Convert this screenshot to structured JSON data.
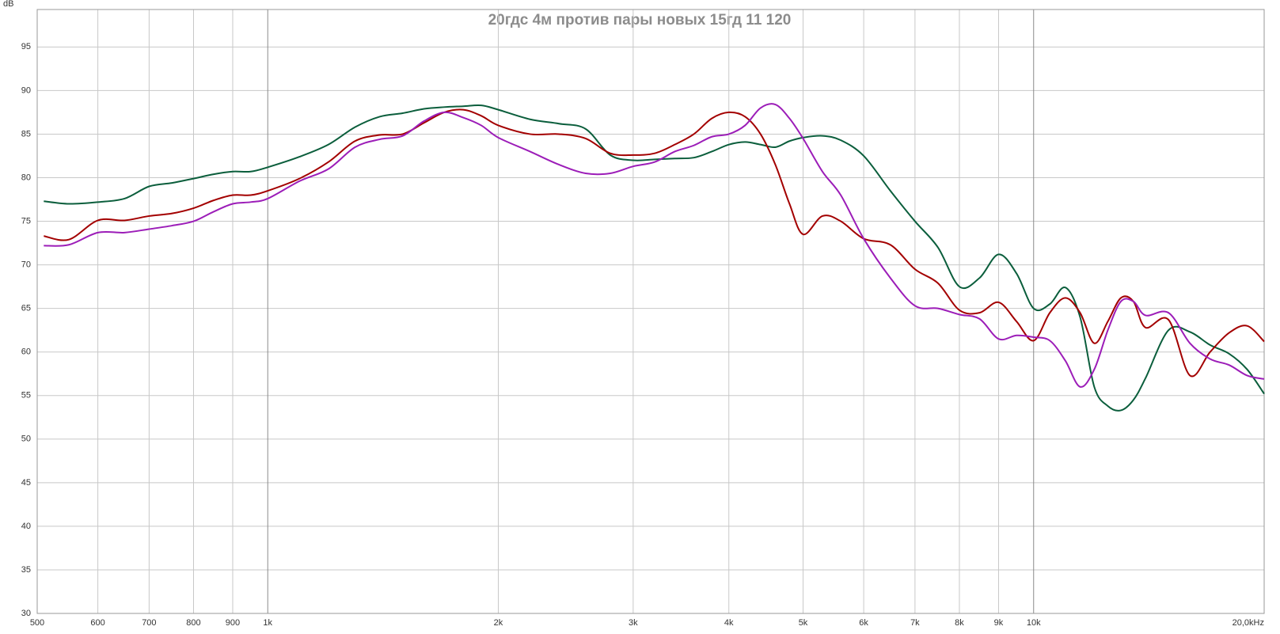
{
  "chart_data": {
    "type": "line",
    "title": "20гдс 4м против пары новых 15гд 11 120",
    "y_label": "dB",
    "x_scale": "log",
    "grid": true,
    "x": [
      510,
      550,
      600,
      650,
      700,
      750,
      800,
      850,
      900,
      950,
      1000,
      1100,
      1200,
      1300,
      1400,
      1500,
      1600,
      1700,
      1800,
      1900,
      2000,
      2200,
      2400,
      2600,
      2800,
      3000,
      3200,
      3400,
      3600,
      3800,
      4000,
      4200,
      4400,
      4600,
      4800,
      5000,
      5300,
      5600,
      6000,
      6500,
      7000,
      7500,
      8000,
      8500,
      9000,
      9500,
      10000,
      10500,
      11000,
      11500,
      12000,
      12500,
      13000,
      13500,
      14000,
      15000,
      16000,
      17000,
      18000,
      19000,
      20000
    ],
    "series": [
      {
        "color": "#0b5e3c",
        "values": [
          77.3,
          77.0,
          77.2,
          77.6,
          79.0,
          79.4,
          79.9,
          80.4,
          80.7,
          80.7,
          81.2,
          82.4,
          83.8,
          85.8,
          87.0,
          87.4,
          87.9,
          88.1,
          88.2,
          88.3,
          87.8,
          86.7,
          86.2,
          85.6,
          82.6,
          82.0,
          82.1,
          82.2,
          82.3,
          83.0,
          83.8,
          84.1,
          83.8,
          83.5,
          84.2,
          84.6,
          84.8,
          84.3,
          82.5,
          78.5,
          75.0,
          72.0,
          67.5,
          68.5,
          71.2,
          69.0,
          65.0,
          65.5,
          67.4,
          64.0,
          56.0,
          53.8,
          53.3,
          54.5,
          57.0,
          62.5,
          62.3,
          60.8,
          59.8,
          58.0,
          55.2
        ]
      },
      {
        "color": "#a30000",
        "values": [
          73.3,
          72.9,
          75.1,
          75.1,
          75.6,
          75.9,
          76.5,
          77.4,
          78.0,
          78.0,
          78.5,
          79.9,
          81.8,
          84.2,
          84.9,
          85.0,
          86.3,
          87.5,
          87.8,
          87.1,
          86.0,
          85.0,
          85.0,
          84.5,
          82.8,
          82.6,
          82.8,
          83.8,
          85.0,
          86.8,
          87.5,
          87.0,
          85.0,
          81.5,
          77.0,
          73.5,
          75.6,
          75.0,
          73.0,
          72.3,
          69.5,
          67.9,
          64.8,
          64.5,
          65.7,
          63.5,
          61.3,
          64.5,
          66.2,
          64.5,
          61.0,
          63.5,
          66.2,
          65.8,
          62.8,
          63.7,
          57.3,
          60.0,
          62.2,
          63.0,
          61.2
        ]
      },
      {
        "color": "#9c1db8",
        "values": [
          72.2,
          72.3,
          73.7,
          73.7,
          74.1,
          74.5,
          75.0,
          76.1,
          77.0,
          77.2,
          77.6,
          79.6,
          81.0,
          83.5,
          84.4,
          84.8,
          86.5,
          87.5,
          86.9,
          86.0,
          84.6,
          83.0,
          81.5,
          80.5,
          80.5,
          81.3,
          81.8,
          83.0,
          83.7,
          84.7,
          85.0,
          86.0,
          88.0,
          88.4,
          86.8,
          84.5,
          80.7,
          78.0,
          73.0,
          68.5,
          65.3,
          65.0,
          64.3,
          63.8,
          61.5,
          61.9,
          61.7,
          61.3,
          59.0,
          56.0,
          58.0,
          62.5,
          65.8,
          65.8,
          64.2,
          64.5,
          61.0,
          59.2,
          58.5,
          57.3,
          56.9
        ]
      }
    ],
    "xlim": [
      500,
      20000
    ],
    "xticks": [
      500,
      600,
      700,
      800,
      900,
      {
        "value": 1000,
        "label": "1k"
      },
      {
        "value": 2000,
        "label": "2k"
      },
      {
        "value": 3000,
        "label": "3k"
      },
      {
        "value": 4000,
        "label": "4k"
      },
      {
        "value": 5000,
        "label": "5k"
      },
      {
        "value": 6000,
        "label": "6k"
      },
      {
        "value": 7000,
        "label": "7k"
      },
      {
        "value": 8000,
        "label": "8k"
      },
      {
        "value": 9000,
        "label": "9k"
      },
      {
        "value": 10000,
        "label": "10k"
      },
      {
        "value": 20000,
        "label": "20,0kHz"
      }
    ],
    "ylim": [
      30,
      99.3
    ],
    "yticks": [
      30,
      35,
      40,
      45,
      50,
      55,
      60,
      65,
      70,
      75,
      80,
      85,
      90,
      95
    ]
  }
}
